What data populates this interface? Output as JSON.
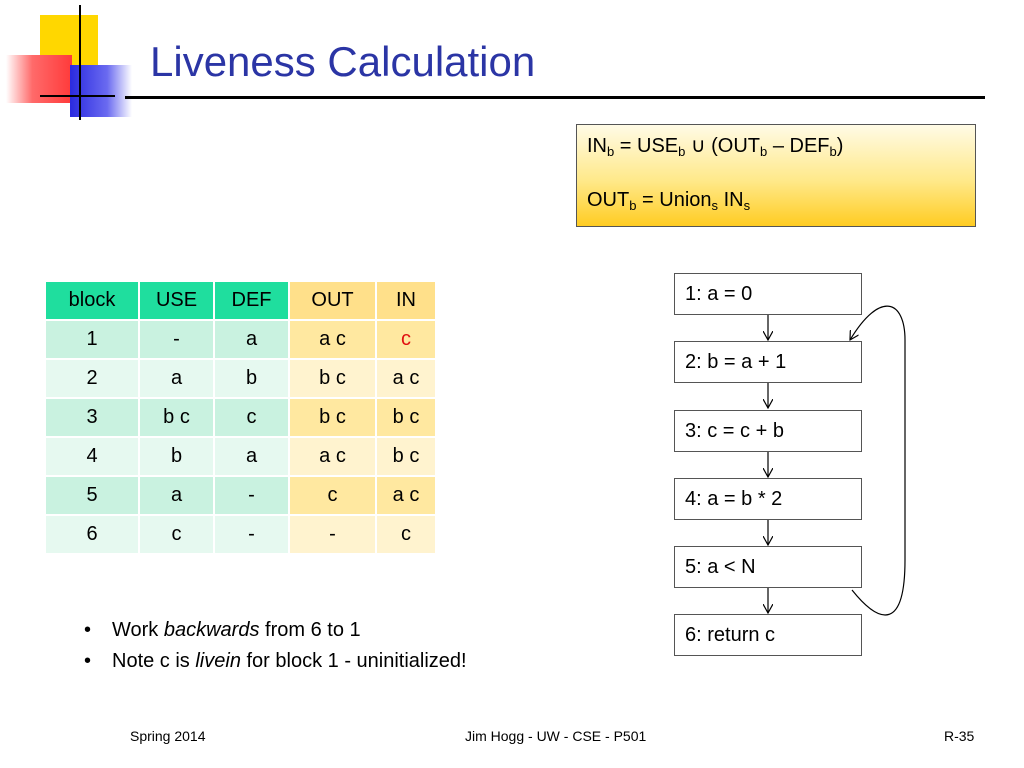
{
  "slide": {
    "title": "Liveness Calculation"
  },
  "formula": {
    "line1": {
      "IN": "IN",
      "b1": "b",
      "eq": " = USE",
      "b2": "b",
      "cup": " ∪ (OUT",
      "b3": "b",
      "minus": " – DEF",
      "b4": "b",
      "close": ")"
    },
    "line2": {
      "OUT": "OUT",
      "b": "b",
      "eq": " = Union",
      "s1": "s",
      "IN": " IN",
      "s2": "s"
    }
  },
  "table": {
    "headers": [
      "block",
      "USE",
      "DEF",
      "OUT",
      "IN"
    ],
    "rows": [
      [
        "1",
        "-",
        "a",
        "a c",
        "c"
      ],
      [
        "2",
        "a",
        "b",
        "b c",
        "a c"
      ],
      [
        "3",
        "b c",
        "c",
        "b c",
        "b c"
      ],
      [
        "4",
        "b",
        "a",
        "a c",
        "b c"
      ],
      [
        "5",
        "a",
        "-",
        "c",
        "a c"
      ],
      [
        "6",
        "c",
        "-",
        "-",
        "c"
      ]
    ],
    "highlight_color": "#e01010"
  },
  "bullets": [
    {
      "pre": "Work ",
      "em": "backwards",
      "post": " from 6 to 1"
    },
    {
      "pre": "Note c is ",
      "em": "livein",
      "post": " for block 1 - uninitialized!"
    }
  ],
  "flowchart": {
    "blocks": [
      "1: a = 0",
      "2: b = a + 1",
      "3: c = c + b",
      "4: a = b * 2",
      "5: a < N",
      "6: return c"
    ]
  },
  "footer": {
    "left": "Spring 2014",
    "center": "Jim Hogg - UW - CSE - P501",
    "right": "R-35"
  },
  "colors": {
    "title": "#2b35a5",
    "header_green": "#1fde9e",
    "header_yellow": "#ffe08a"
  }
}
